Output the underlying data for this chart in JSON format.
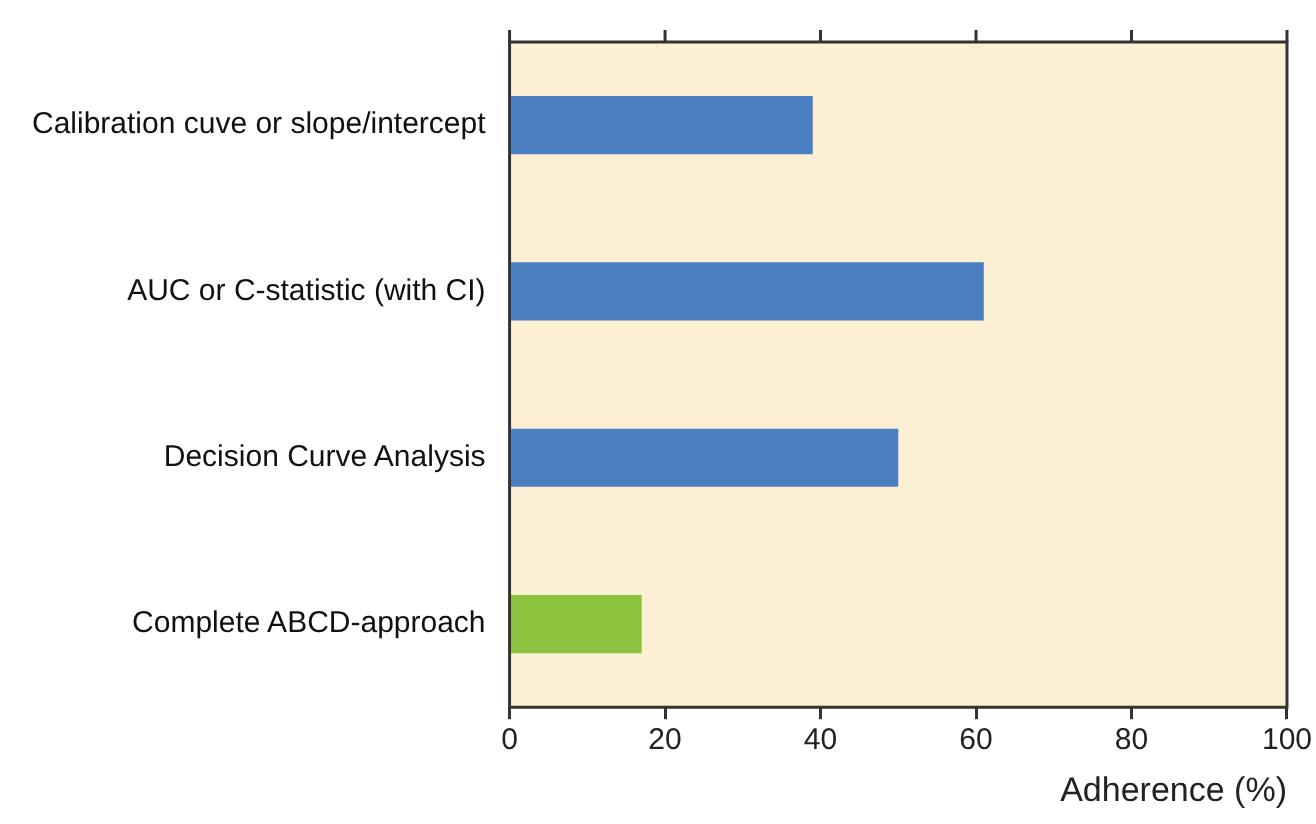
{
  "chart_data": {
    "type": "bar",
    "orientation": "horizontal",
    "xlabel": "Adherence (%)",
    "categories": [
      "Calibration cuve or slope/intercept",
      "AUC or C-statistic (with CI)",
      "Decision Curve Analysis",
      "Complete ABCD-approach"
    ],
    "values": [
      39,
      61,
      50,
      17
    ],
    "colors": [
      "#4a7fc1",
      "#4a7fc1",
      "#4a7fc1",
      "#8cc43f"
    ],
    "xlim": [
      0,
      100
    ],
    "xticks": [
      0,
      20,
      40,
      60,
      80,
      100
    ],
    "grid": false,
    "legend": false
  }
}
